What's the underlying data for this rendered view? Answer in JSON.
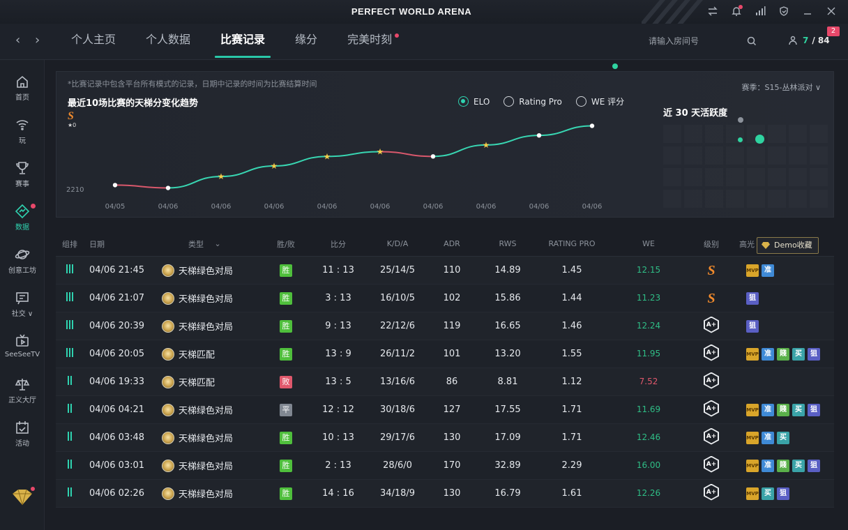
{
  "app": {
    "title": "PERFECT WORLD ARENA"
  },
  "nav": {
    "tabs": [
      {
        "label": "个人主页"
      },
      {
        "label": "个人数据"
      },
      {
        "label": "比赛记录"
      },
      {
        "label": "缘分"
      },
      {
        "label": "完美时刻"
      }
    ],
    "active_tab": "比赛记录",
    "room_placeholder": "请输入房间号",
    "online": {
      "current": "7",
      "total": "/ 84"
    },
    "notif_count": "2"
  },
  "sidebar": {
    "items": [
      {
        "label": "首页",
        "icon": "home-icon"
      },
      {
        "label": "玩",
        "icon": "play-icon"
      },
      {
        "label": "赛事",
        "icon": "trophy-icon"
      },
      {
        "label": "数据",
        "icon": "data-icon"
      },
      {
        "label": "创意工坊",
        "icon": "workshop-icon"
      },
      {
        "label": "社交 ∨",
        "icon": "social-icon"
      },
      {
        "label": "SeeSeeTV",
        "icon": "tv-icon"
      },
      {
        "label": "正义大厅",
        "icon": "justice-icon"
      },
      {
        "label": "活动",
        "icon": "calendar-icon"
      }
    ]
  },
  "chart_panel": {
    "note": "*比赛记录中包含平台所有模式的记录，日期中记录的时间为比赛结算时间",
    "title": "最近10场比赛的天梯分变化趋势",
    "season": "赛季：S15-丛林派对 ∨",
    "radios": [
      {
        "label": "ELO",
        "checked": true
      },
      {
        "label": "Rating Pro",
        "checked": false
      },
      {
        "label": "WE 评分",
        "checked": false
      }
    ],
    "rank_letter": "S",
    "rank_stars": "★0",
    "activity_title": "近 30 天活跃度"
  },
  "chart_data": {
    "type": "line",
    "title": "最近10场比赛的天梯分变化趋势",
    "categories": [
      "04/05",
      "04/06",
      "04/06",
      "04/06",
      "04/06",
      "04/06",
      "04/06",
      "04/06",
      "04/06",
      "04/06"
    ],
    "ytick_label": "2210",
    "series": [
      {
        "values": [
          2212,
          2209,
          2221,
          2232,
          2242,
          2247,
          2242,
          2254,
          2264,
          2274
        ],
        "mvp": [
          false,
          false,
          true,
          true,
          true,
          true,
          false,
          true,
          false,
          false
        ]
      }
    ],
    "colors": {
      "up": "#38d6b2",
      "down": "#d9586c"
    }
  },
  "table": {
    "headers": [
      "组排",
      "日期",
      "类型",
      "胜/败",
      "比分",
      "K/D/A",
      "ADR",
      "RWS",
      "RATING PRO",
      "WE",
      "级别",
      "高光"
    ],
    "demo_button": "Demo收藏",
    "rows": [
      {
        "group": 3,
        "date": "04/06 21:45",
        "type": "天梯绿色对局",
        "result": "胜",
        "res": "win",
        "score": "11 : 13",
        "kda": "25/14/5",
        "adr": "110",
        "rws": "14.89",
        "rating": "1.45",
        "we": "12.15",
        "we_color": "green",
        "rank": "S",
        "badges": [
          "mvp",
          "准"
        ]
      },
      {
        "group": 3,
        "date": "04/06 21:07",
        "type": "天梯绿色对局",
        "result": "胜",
        "res": "win",
        "score": "3 : 13",
        "kda": "16/10/5",
        "adr": "102",
        "rws": "15.86",
        "rating": "1.44",
        "we": "11.23",
        "we_color": "green",
        "rank": "S",
        "badges": [
          "狙"
        ]
      },
      {
        "group": 3,
        "date": "04/06 20:39",
        "type": "天梯绿色对局",
        "result": "胜",
        "res": "win",
        "score": "9 : 13",
        "kda": "22/12/6",
        "adr": "119",
        "rws": "16.65",
        "rating": "1.46",
        "we": "12.24",
        "we_color": "green",
        "rank": "A+",
        "badges": [
          "狙"
        ]
      },
      {
        "group": 3,
        "date": "04/06 20:05",
        "type": "天梯匹配",
        "result": "胜",
        "res": "win",
        "score": "13 : 9",
        "kda": "26/11/2",
        "adr": "101",
        "rws": "13.20",
        "rating": "1.55",
        "we": "11.95",
        "we_color": "green",
        "rank": "A+",
        "badges": [
          "mvp",
          "准",
          "賤",
          "买",
          "狙"
        ]
      },
      {
        "group": 2,
        "date": "04/06 19:33",
        "type": "天梯匹配",
        "result": "败",
        "res": "lose",
        "score": "13 : 5",
        "kda": "13/16/6",
        "adr": "86",
        "rws": "8.81",
        "rating": "1.12",
        "we": "7.52",
        "we_color": "red",
        "rank": "A+",
        "badges": []
      },
      {
        "group": 2,
        "date": "04/06 04:21",
        "type": "天梯绿色对局",
        "result": "平",
        "res": "draw",
        "score": "12 : 12",
        "kda": "30/18/6",
        "adr": "127",
        "rws": "17.55",
        "rating": "1.71",
        "we": "11.69",
        "we_color": "green",
        "rank": "A+",
        "badges": [
          "mvp",
          "准",
          "賤",
          "买",
          "狙"
        ]
      },
      {
        "group": 2,
        "date": "04/06 03:48",
        "type": "天梯绿色对局",
        "result": "胜",
        "res": "win",
        "score": "10 : 13",
        "kda": "29/17/6",
        "adr": "130",
        "rws": "17.09",
        "rating": "1.71",
        "we": "12.46",
        "we_color": "green",
        "rank": "A+",
        "badges": [
          "mvp",
          "准",
          "买"
        ]
      },
      {
        "group": 2,
        "date": "04/06 03:01",
        "type": "天梯绿色对局",
        "result": "胜",
        "res": "win",
        "score": "2 : 13",
        "kda": "28/6/0",
        "adr": "170",
        "rws": "32.89",
        "rating": "2.29",
        "we": "16.00",
        "we_color": "green",
        "rank": "A+",
        "badges": [
          "mvp",
          "准",
          "賤",
          "买",
          "狙"
        ]
      },
      {
        "group": 2,
        "date": "04/06 02:26",
        "type": "天梯绿色对局",
        "result": "胜",
        "res": "win",
        "score": "14 : 16",
        "kda": "34/18/9",
        "adr": "130",
        "rws": "16.79",
        "rating": "1.61",
        "we": "12.26",
        "we_color": "green",
        "rank": "A+",
        "badges": [
          "mvp",
          "买",
          "狙"
        ]
      }
    ]
  }
}
